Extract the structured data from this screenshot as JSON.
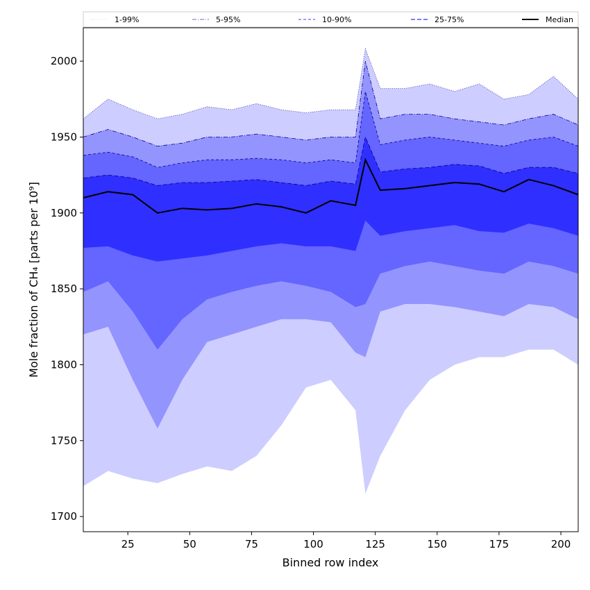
{
  "chart_data": {
    "type": "area",
    "title": "",
    "xlabel": "Binned row index",
    "ylabel": "Mole fraction of CH₄ [parts per 10⁹]",
    "xlim": [
      7,
      207
    ],
    "ylim": [
      1690,
      2022
    ],
    "xticks": [
      25,
      50,
      75,
      100,
      125,
      150,
      175,
      200
    ],
    "yticks": [
      1700,
      1750,
      1800,
      1850,
      1900,
      1950,
      2000
    ],
    "grid": false,
    "legend_position": "top",
    "colors": {
      "band_1_99": "#cdcdff",
      "band_5_95": "#9494ff",
      "band_10_90": "#6565ff",
      "band_25_75": "#2f2fff",
      "median": "#000000"
    },
    "legend": [
      {
        "label": "1-99%",
        "style": "dotted"
      },
      {
        "label": "5-95%",
        "style": "dashdot"
      },
      {
        "label": "10-90%",
        "style": "dashed"
      },
      {
        "label": "25-75%",
        "style": "dashed"
      },
      {
        "label": "Median",
        "style": "solid"
      }
    ],
    "x": [
      7,
      17,
      27,
      37,
      47,
      57,
      67,
      77,
      87,
      97,
      107,
      117,
      121,
      127,
      137,
      147,
      157,
      167,
      177,
      187,
      197,
      207
    ],
    "series": [
      {
        "name": "Median",
        "values": [
          1910,
          1914,
          1912,
          1900,
          1903,
          1902,
          1903,
          1906,
          1904,
          1900,
          1908,
          1905,
          1935,
          1915,
          1916,
          1918,
          1920,
          1919,
          1914,
          1922,
          1918,
          1912
        ]
      },
      {
        "name": "25-75% upper",
        "values": [
          1923,
          1925,
          1923,
          1918,
          1920,
          1920,
          1921,
          1922,
          1920,
          1918,
          1921,
          1919,
          1950,
          1927,
          1929,
          1930,
          1932,
          1931,
          1926,
          1930,
          1930,
          1926
        ]
      },
      {
        "name": "25-75% lower",
        "values": [
          1877,
          1878,
          1872,
          1868,
          1870,
          1872,
          1875,
          1878,
          1880,
          1878,
          1878,
          1875,
          1895,
          1885,
          1888,
          1890,
          1892,
          1888,
          1887,
          1893,
          1890,
          1885
        ]
      },
      {
        "name": "10-90% upper",
        "values": [
          1938,
          1940,
          1937,
          1930,
          1933,
          1935,
          1935,
          1936,
          1935,
          1933,
          1935,
          1933,
          1980,
          1945,
          1948,
          1950,
          1948,
          1946,
          1944,
          1948,
          1950,
          1944
        ]
      },
      {
        "name": "10-90% lower",
        "values": [
          1848,
          1855,
          1835,
          1810,
          1830,
          1843,
          1848,
          1852,
          1855,
          1852,
          1848,
          1838,
          1840,
          1860,
          1865,
          1868,
          1865,
          1862,
          1860,
          1868,
          1865,
          1860
        ]
      },
      {
        "name": "5-95% upper",
        "values": [
          1950,
          1955,
          1950,
          1944,
          1946,
          1950,
          1950,
          1952,
          1950,
          1948,
          1950,
          1950,
          2000,
          1962,
          1965,
          1965,
          1962,
          1960,
          1958,
          1962,
          1965,
          1958
        ]
      },
      {
        "name": "5-95% lower",
        "values": [
          1820,
          1825,
          1790,
          1758,
          1790,
          1815,
          1820,
          1825,
          1830,
          1830,
          1828,
          1808,
          1805,
          1835,
          1840,
          1840,
          1838,
          1835,
          1832,
          1840,
          1838,
          1830
        ]
      },
      {
        "name": "1-99% upper",
        "values": [
          1962,
          1975,
          1968,
          1962,
          1965,
          1970,
          1968,
          1972,
          1968,
          1966,
          1968,
          1968,
          2008,
          1982,
          1982,
          1985,
          1980,
          1985,
          1975,
          1978,
          1990,
          1975
        ]
      },
      {
        "name": "1-99% lower",
        "values": [
          1720,
          1730,
          1725,
          1722,
          1728,
          1733,
          1730,
          1740,
          1760,
          1785,
          1790,
          1770,
          1715,
          1740,
          1770,
          1790,
          1800,
          1805,
          1805,
          1810,
          1810,
          1800
        ]
      }
    ]
  }
}
